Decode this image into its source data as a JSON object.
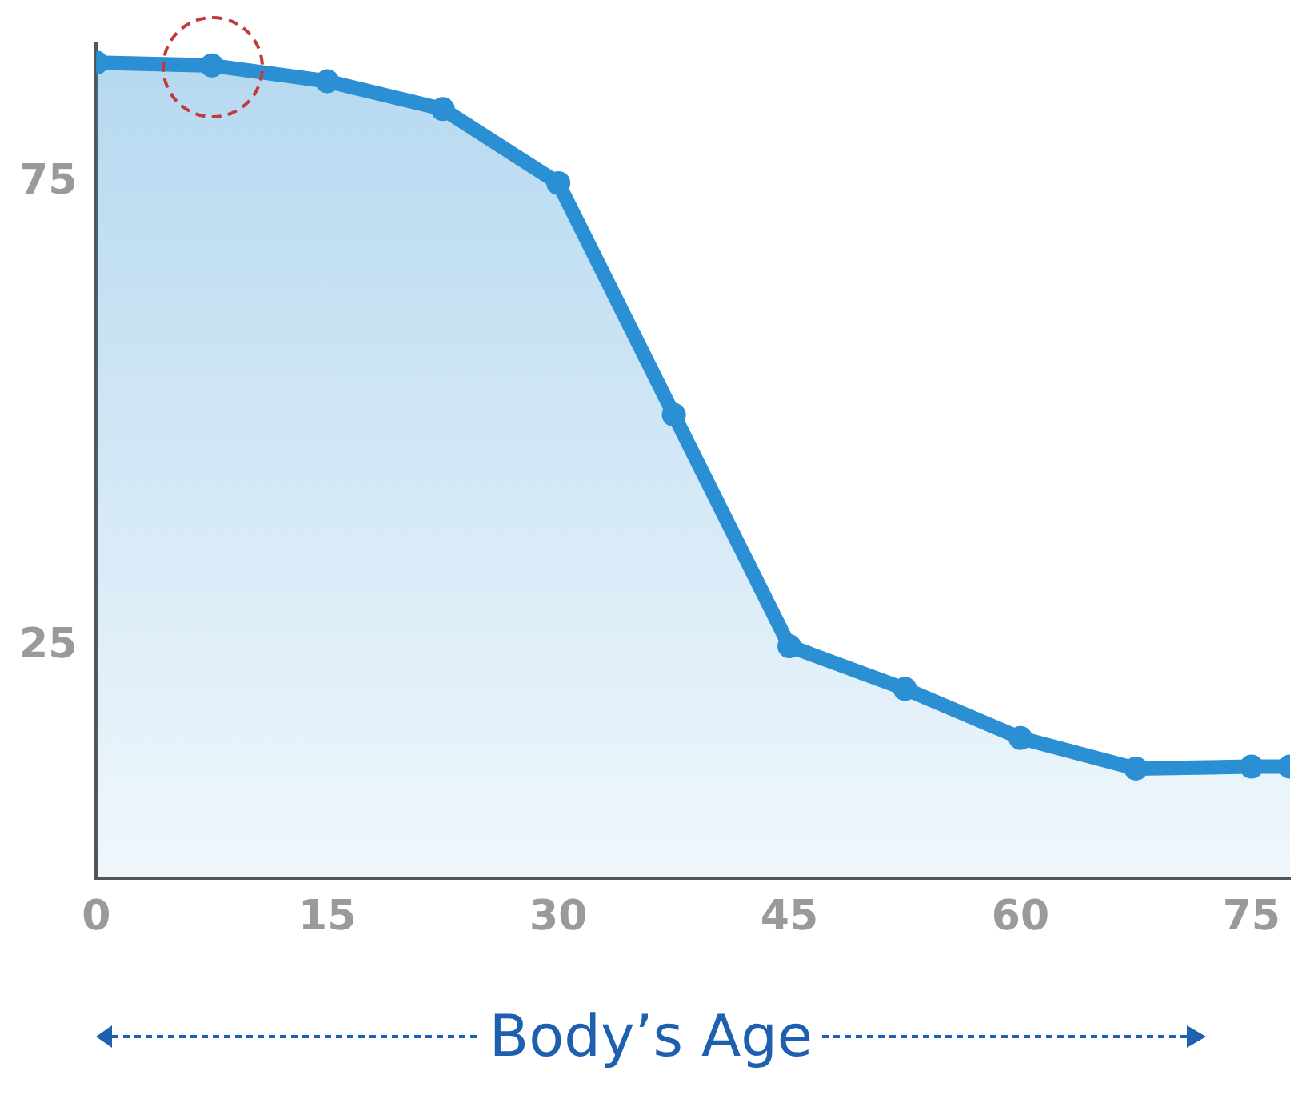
{
  "chart_data": {
    "type": "area",
    "xlabel": "Body’s Age",
    "x": [
      0,
      7.5,
      15,
      22.5,
      30,
      37.5,
      45,
      52.5,
      60,
      67.5,
      75,
      77.5
    ],
    "series": [
      {
        "color": "#2a8fd3",
        "values": [
          88,
          87.7,
          86,
          83,
          75,
          50,
          25,
          20.4,
          15.1,
          11.8,
          12,
          12
        ]
      }
    ],
    "xlim": [
      0,
      77.5
    ],
    "xticks": [
      0,
      15,
      30,
      45,
      60,
      75
    ],
    "ylim": [
      0,
      90
    ],
    "yticks": [
      25,
      75
    ],
    "grid": false,
    "legend": false,
    "marker": "circle"
  }
}
